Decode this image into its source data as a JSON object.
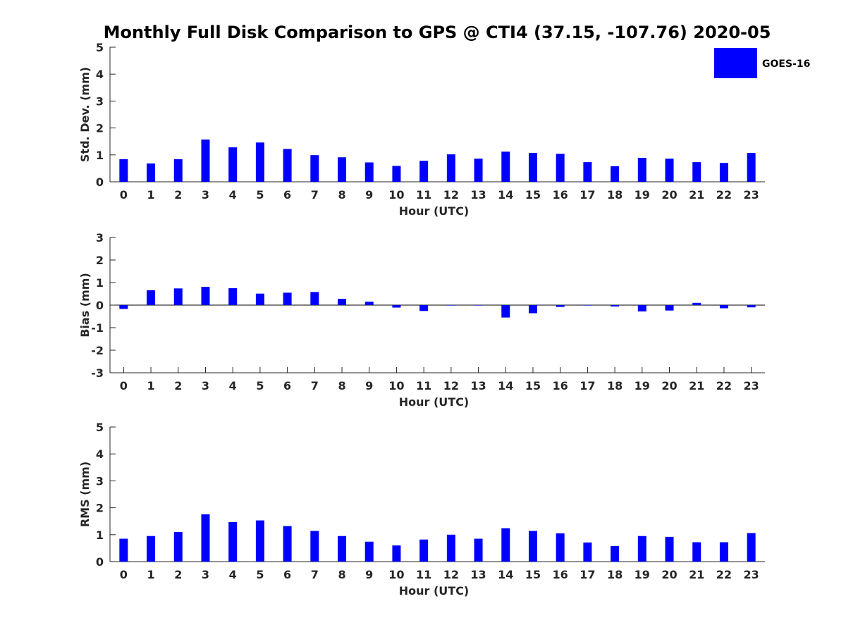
{
  "figure": {
    "title": "Monthly Full Disk Comparison to GPS @ CTI4 (37.15, -107.76) 2020-05"
  },
  "legend": {
    "label": "GOES-16",
    "color": "#0000ff",
    "placement": "top-right"
  },
  "chart_data": [
    {
      "type": "bar",
      "xlabel": "Hour (UTC)",
      "ylabel": "Std. Dev. (mm)",
      "ylim": [
        0,
        5
      ],
      "yticks": [
        0,
        1,
        2,
        3,
        4,
        5
      ],
      "categories": [
        "0",
        "1",
        "2",
        "3",
        "4",
        "5",
        "6",
        "7",
        "8",
        "9",
        "10",
        "11",
        "12",
        "13",
        "14",
        "15",
        "16",
        "17",
        "18",
        "19",
        "20",
        "21",
        "22",
        "23"
      ],
      "series": [
        {
          "name": "GOES-16",
          "color": "#0000ff",
          "values": [
            0.84,
            0.68,
            0.84,
            1.57,
            1.28,
            1.46,
            1.22,
            0.99,
            0.91,
            0.72,
            0.59,
            0.78,
            1.02,
            0.86,
            1.12,
            1.07,
            1.04,
            0.73,
            0.58,
            0.89,
            0.86,
            0.73,
            0.7,
            1.07
          ]
        }
      ]
    },
    {
      "type": "bar",
      "xlabel": "Hour (UTC)",
      "ylabel": "Bias (mm)",
      "ylim": [
        -3,
        3
      ],
      "yticks": [
        -3,
        -2,
        -1,
        0,
        1,
        2,
        3
      ],
      "zero_line": true,
      "categories": [
        "0",
        "1",
        "2",
        "3",
        "4",
        "5",
        "6",
        "7",
        "8",
        "9",
        "10",
        "11",
        "12",
        "13",
        "14",
        "15",
        "16",
        "17",
        "18",
        "19",
        "20",
        "21",
        "22",
        "23"
      ],
      "series": [
        {
          "name": "GOES-16",
          "color": "#0000ff",
          "values": [
            -0.17,
            0.66,
            0.74,
            0.81,
            0.75,
            0.51,
            0.55,
            0.58,
            0.28,
            0.15,
            -0.11,
            -0.26,
            -0.02,
            -0.02,
            -0.55,
            -0.36,
            -0.08,
            -0.02,
            -0.06,
            -0.28,
            -0.24,
            0.1,
            -0.14,
            -0.1
          ]
        }
      ]
    },
    {
      "type": "bar",
      "xlabel": "Hour (UTC)",
      "ylabel": "RMS (mm)",
      "ylim": [
        0,
        5
      ],
      "yticks": [
        0,
        1,
        2,
        3,
        4,
        5
      ],
      "categories": [
        "0",
        "1",
        "2",
        "3",
        "4",
        "5",
        "6",
        "7",
        "8",
        "9",
        "10",
        "11",
        "12",
        "13",
        "14",
        "15",
        "16",
        "17",
        "18",
        "19",
        "20",
        "21",
        "22",
        "23"
      ],
      "series": [
        {
          "name": "GOES-16",
          "color": "#0000ff",
          "values": [
            0.85,
            0.95,
            1.1,
            1.76,
            1.47,
            1.53,
            1.32,
            1.14,
            0.95,
            0.74,
            0.6,
            0.82,
            1.0,
            0.85,
            1.24,
            1.14,
            1.05,
            0.71,
            0.58,
            0.95,
            0.92,
            0.72,
            0.72,
            1.06
          ]
        }
      ]
    }
  ]
}
